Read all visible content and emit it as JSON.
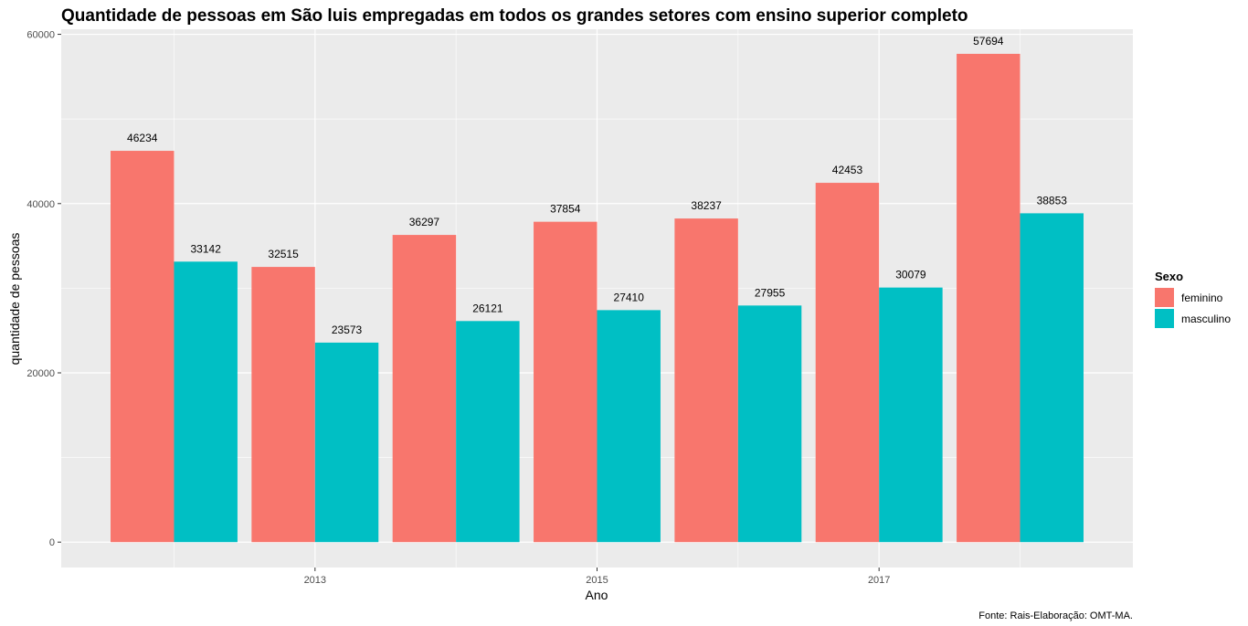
{
  "chart_data": {
    "type": "bar",
    "title": "Quantidade de pessoas em São luis empregadas em todos os grandes setores com ensino superior completo",
    "xlabel": "Ano",
    "ylabel": "quantidade de pessoas",
    "caption": "Fonte: Rais-Elaboração: OMT-MA.",
    "x": [
      2012,
      2013,
      2014,
      2015,
      2016,
      2017,
      2018
    ],
    "x_ticks": [
      "2013",
      "2015",
      "2017"
    ],
    "x_tick_values": [
      2013,
      2015,
      2017
    ],
    "y_ticks": [
      "0",
      "20000",
      "40000",
      "60000"
    ],
    "y_tick_values": [
      0,
      20000,
      40000,
      60000
    ],
    "xlim": [
      2011.2,
      2018.8
    ],
    "ylim": [
      -3000,
      60600
    ],
    "grid": true,
    "legend": {
      "title": "Sexo",
      "position": "right"
    },
    "series": [
      {
        "name": "feminino",
        "color": "#F8766D",
        "values": [
          46234,
          32515,
          36297,
          37854,
          38237,
          42453,
          57694
        ]
      },
      {
        "name": "masculino",
        "color": "#00BFC4",
        "values": [
          33142,
          23573,
          26121,
          27410,
          27955,
          30079,
          38853
        ]
      }
    ],
    "panel_background": "#EBEBEB",
    "grid_color": "#FFFFFF"
  }
}
